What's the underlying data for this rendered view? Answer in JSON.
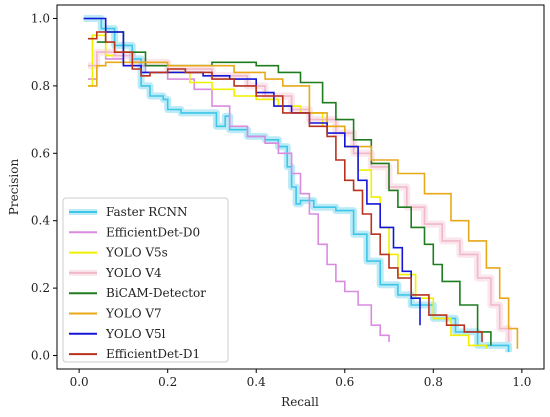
{
  "chart_data": {
    "type": "line",
    "title": "",
    "xlabel": "Recall",
    "ylabel": "Precision",
    "xlim": [
      -0.05,
      1.05
    ],
    "ylim": [
      -0.04,
      1.04
    ],
    "xticks": [
      "0.0",
      "0.2",
      "0.4",
      "0.6",
      "0.8",
      "1.0"
    ],
    "yticks": [
      "0.0",
      "0.2",
      "0.4",
      "0.6",
      "0.8",
      "1.0"
    ],
    "grid": false,
    "legend_position": "lower-left",
    "series": [
      {
        "name": "Faster RCNN",
        "color": "#3ec6e8",
        "halo": true,
        "points": [
          [
            0.01,
            1.0
          ],
          [
            0.04,
            1.0
          ],
          [
            0.05,
            0.97
          ],
          [
            0.08,
            0.92
          ],
          [
            0.12,
            0.88
          ],
          [
            0.14,
            0.8
          ],
          [
            0.16,
            0.77
          ],
          [
            0.19,
            0.76
          ],
          [
            0.2,
            0.73
          ],
          [
            0.23,
            0.72
          ],
          [
            0.3,
            0.72
          ],
          [
            0.31,
            0.68
          ],
          [
            0.33,
            0.71
          ],
          [
            0.34,
            0.67
          ],
          [
            0.36,
            0.67
          ],
          [
            0.38,
            0.65
          ],
          [
            0.42,
            0.64
          ],
          [
            0.45,
            0.62
          ],
          [
            0.47,
            0.56
          ],
          [
            0.48,
            0.5
          ],
          [
            0.49,
            0.45
          ],
          [
            0.5,
            0.46
          ],
          [
            0.53,
            0.44
          ],
          [
            0.58,
            0.43
          ],
          [
            0.6,
            0.43
          ],
          [
            0.62,
            0.36
          ],
          [
            0.65,
            0.28
          ],
          [
            0.68,
            0.21
          ],
          [
            0.72,
            0.18
          ],
          [
            0.75,
            0.15
          ],
          [
            0.8,
            0.11
          ],
          [
            0.85,
            0.07
          ],
          [
            0.9,
            0.03
          ],
          [
            0.97,
            0.01
          ]
        ]
      },
      {
        "name": "EfficientDet-D0",
        "color": "#d98be0",
        "halo": false,
        "points": [
          [
            0.02,
            0.82
          ],
          [
            0.04,
            0.9
          ],
          [
            0.06,
            0.88
          ],
          [
            0.1,
            0.86
          ],
          [
            0.15,
            0.84
          ],
          [
            0.2,
            0.82
          ],
          [
            0.26,
            0.79
          ],
          [
            0.3,
            0.74
          ],
          [
            0.34,
            0.68
          ],
          [
            0.38,
            0.65
          ],
          [
            0.42,
            0.63
          ],
          [
            0.45,
            0.6
          ],
          [
            0.48,
            0.54
          ],
          [
            0.5,
            0.48
          ],
          [
            0.52,
            0.42
          ],
          [
            0.54,
            0.33
          ],
          [
            0.56,
            0.27
          ],
          [
            0.58,
            0.22
          ],
          [
            0.6,
            0.19
          ],
          [
            0.63,
            0.15
          ],
          [
            0.66,
            0.09
          ],
          [
            0.68,
            0.06
          ],
          [
            0.7,
            0.04
          ]
        ]
      },
      {
        "name": "YOLO V5s",
        "color": "#f0f000",
        "halo": false,
        "points": [
          [
            0.02,
            0.8
          ],
          [
            0.03,
            0.95
          ],
          [
            0.06,
            0.89
          ],
          [
            0.08,
            0.9
          ],
          [
            0.12,
            0.87
          ],
          [
            0.2,
            0.84
          ],
          [
            0.25,
            0.81
          ],
          [
            0.3,
            0.79
          ],
          [
            0.35,
            0.77
          ],
          [
            0.4,
            0.76
          ],
          [
            0.45,
            0.74
          ],
          [
            0.5,
            0.72
          ],
          [
            0.55,
            0.68
          ],
          [
            0.6,
            0.62
          ],
          [
            0.63,
            0.55
          ],
          [
            0.66,
            0.47
          ],
          [
            0.68,
            0.38
          ],
          [
            0.7,
            0.3
          ],
          [
            0.72,
            0.24
          ],
          [
            0.76,
            0.17
          ],
          [
            0.8,
            0.11
          ],
          [
            0.84,
            0.06
          ],
          [
            0.88,
            0.03
          ],
          [
            0.92,
            0.02
          ]
        ]
      },
      {
        "name": "YOLO V4",
        "color": "#f0b8c8",
        "halo": true,
        "points": [
          [
            0.02,
            0.86
          ],
          [
            0.04,
            0.9
          ],
          [
            0.08,
            0.89
          ],
          [
            0.12,
            0.87
          ],
          [
            0.2,
            0.85
          ],
          [
            0.3,
            0.83
          ],
          [
            0.38,
            0.8
          ],
          [
            0.42,
            0.77
          ],
          [
            0.48,
            0.73
          ],
          [
            0.52,
            0.7
          ],
          [
            0.58,
            0.66
          ],
          [
            0.62,
            0.6
          ],
          [
            0.66,
            0.56
          ],
          [
            0.7,
            0.5
          ],
          [
            0.74,
            0.44
          ],
          [
            0.78,
            0.39
          ],
          [
            0.82,
            0.34
          ],
          [
            0.86,
            0.3
          ],
          [
            0.9,
            0.23
          ],
          [
            0.93,
            0.15
          ],
          [
            0.95,
            0.08
          ],
          [
            0.97,
            0.04
          ]
        ]
      },
      {
        "name": "BiCAM-Detector",
        "color": "#1f7d1f",
        "halo": false,
        "points": [
          [
            0.04,
            0.93
          ],
          [
            0.06,
            0.96
          ],
          [
            0.1,
            0.9
          ],
          [
            0.15,
            0.86
          ],
          [
            0.2,
            0.86
          ],
          [
            0.3,
            0.87
          ],
          [
            0.4,
            0.86
          ],
          [
            0.45,
            0.84
          ],
          [
            0.5,
            0.81
          ],
          [
            0.55,
            0.75
          ],
          [
            0.58,
            0.7
          ],
          [
            0.62,
            0.64
          ],
          [
            0.66,
            0.57
          ],
          [
            0.7,
            0.49
          ],
          [
            0.72,
            0.44
          ],
          [
            0.75,
            0.38
          ],
          [
            0.78,
            0.33
          ],
          [
            0.8,
            0.27
          ],
          [
            0.82,
            0.22
          ],
          [
            0.86,
            0.15
          ],
          [
            0.9,
            0.07
          ],
          [
            0.93,
            0.03
          ]
        ]
      },
      {
        "name": "YOLO V7",
        "color": "#e8a818",
        "halo": false,
        "points": [
          [
            0.02,
            0.8
          ],
          [
            0.04,
            0.86
          ],
          [
            0.06,
            0.87
          ],
          [
            0.1,
            0.87
          ],
          [
            0.2,
            0.86
          ],
          [
            0.28,
            0.86
          ],
          [
            0.35,
            0.84
          ],
          [
            0.42,
            0.82
          ],
          [
            0.46,
            0.8
          ],
          [
            0.52,
            0.72
          ],
          [
            0.56,
            0.68
          ],
          [
            0.6,
            0.62
          ],
          [
            0.66,
            0.58
          ],
          [
            0.72,
            0.54
          ],
          [
            0.78,
            0.48
          ],
          [
            0.84,
            0.4
          ],
          [
            0.88,
            0.34
          ],
          [
            0.92,
            0.26
          ],
          [
            0.95,
            0.17
          ],
          [
            0.97,
            0.08
          ],
          [
            0.99,
            0.02
          ]
        ]
      },
      {
        "name": "YOLO V5l",
        "color": "#1515d8",
        "halo": false,
        "points": [
          [
            0.01,
            1.0
          ],
          [
            0.05,
            1.0
          ],
          [
            0.06,
            0.96
          ],
          [
            0.1,
            0.86
          ],
          [
            0.14,
            0.84
          ],
          [
            0.2,
            0.84
          ],
          [
            0.28,
            0.83
          ],
          [
            0.34,
            0.82
          ],
          [
            0.4,
            0.78
          ],
          [
            0.44,
            0.74
          ],
          [
            0.48,
            0.72
          ],
          [
            0.52,
            0.69
          ],
          [
            0.56,
            0.66
          ],
          [
            0.6,
            0.62
          ],
          [
            0.63,
            0.52
          ],
          [
            0.65,
            0.45
          ],
          [
            0.68,
            0.38
          ],
          [
            0.71,
            0.32
          ],
          [
            0.73,
            0.25
          ],
          [
            0.75,
            0.17
          ],
          [
            0.77,
            0.09
          ]
        ]
      },
      {
        "name": "EfficientDet-D1",
        "color": "#b8321e",
        "halo": false,
        "points": [
          [
            0.02,
            0.94
          ],
          [
            0.04,
            0.96
          ],
          [
            0.06,
            0.93
          ],
          [
            0.08,
            0.9
          ],
          [
            0.12,
            0.85
          ],
          [
            0.14,
            0.83
          ],
          [
            0.16,
            0.84
          ],
          [
            0.2,
            0.85
          ],
          [
            0.24,
            0.84
          ],
          [
            0.3,
            0.82
          ],
          [
            0.35,
            0.8
          ],
          [
            0.4,
            0.77
          ],
          [
            0.46,
            0.72
          ],
          [
            0.52,
            0.68
          ],
          [
            0.56,
            0.65
          ],
          [
            0.58,
            0.58
          ],
          [
            0.6,
            0.52
          ],
          [
            0.62,
            0.49
          ],
          [
            0.64,
            0.42
          ],
          [
            0.66,
            0.36
          ],
          [
            0.68,
            0.3
          ],
          [
            0.7,
            0.26
          ],
          [
            0.72,
            0.23
          ],
          [
            0.75,
            0.18
          ],
          [
            0.79,
            0.12
          ],
          [
            0.83,
            0.09
          ],
          [
            0.87,
            0.07
          ],
          [
            0.91,
            0.04
          ]
        ]
      }
    ]
  }
}
